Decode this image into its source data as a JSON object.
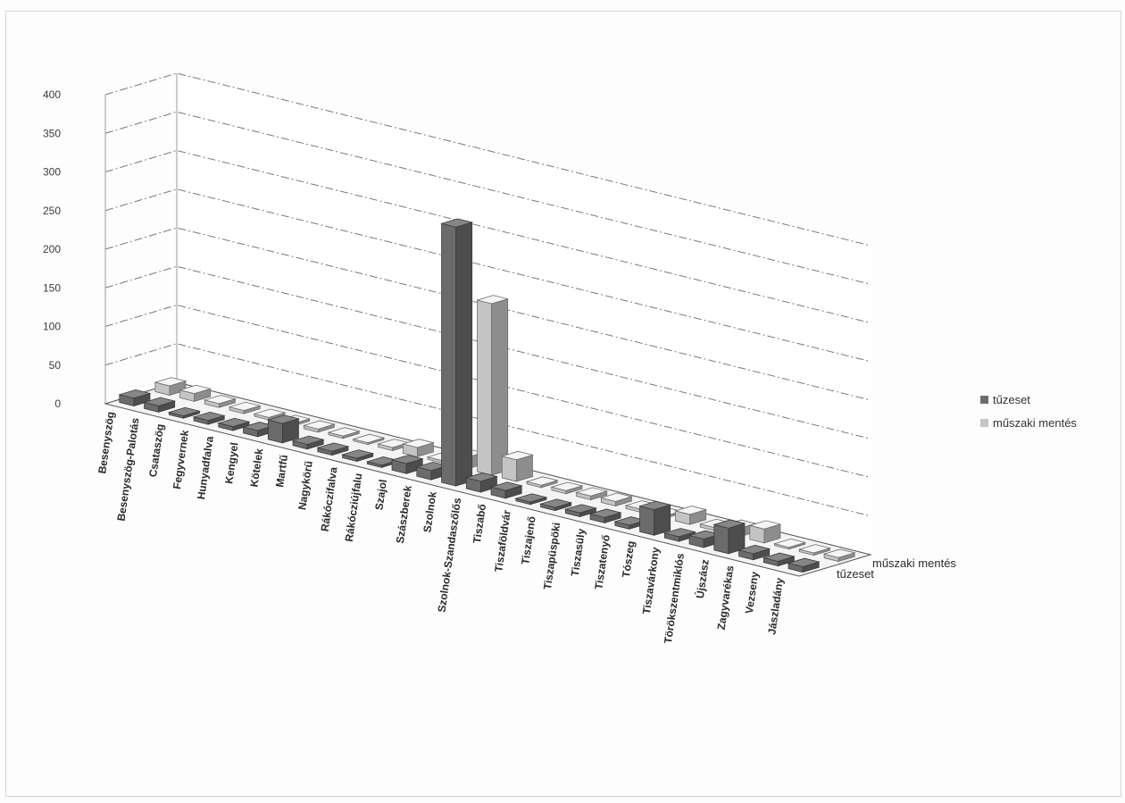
{
  "chart_data": {
    "type": "bar",
    "style": "3d-column",
    "ylim": [
      0,
      400
    ],
    "yticks": [
      "0",
      "50",
      "100",
      "150",
      "200",
      "250",
      "300",
      "350",
      "400"
    ],
    "grid": true,
    "legend_position": "right",
    "categories": [
      "Besenyszög",
      "Besenyszög-Palotás",
      "Csataszög",
      "Fegyvernek",
      "Hunyadfalva",
      "Kengyel",
      "Kötelek",
      "Martfű",
      "Nagykörű",
      "Rákóczifalva",
      "Rákócziújfalu",
      "Szajol",
      "Szászberek",
      "Szolnok",
      "Szolnok-Szandaszőlős",
      "Tiszabő",
      "Tiszaföldvár",
      "Tiszajenő",
      "Tiszapüspöki",
      "Tiszasüly",
      "Tiszatenyő",
      "Tószeg",
      "Tiszavárkony",
      "Törökszentmiklós",
      "Újszász",
      "Zagyvarékas",
      "Vezseny",
      "Jászladány"
    ],
    "series": [
      {
        "name": "tűzeset",
        "color": "#6b6b6b",
        "values": [
          10,
          8,
          3,
          5,
          5,
          8,
          25,
          6,
          5,
          4,
          3,
          13,
          12,
          335,
          14,
          10,
          3,
          4,
          5,
          7,
          5,
          33,
          6,
          11,
          33,
          8,
          6,
          7
        ]
      },
      {
        "name": "műszaki mentés",
        "color": "#c4c4c4",
        "values": [
          12,
          10,
          5,
          4,
          3,
          3,
          4,
          3,
          2,
          4,
          12,
          3,
          15,
          222,
          28,
          3,
          4,
          5,
          6,
          4,
          3,
          13,
          4,
          11,
          18,
          2,
          3,
          5
        ]
      }
    ],
    "depth_labels": [
      "tűzeset",
      "műszaki mentés"
    ]
  }
}
